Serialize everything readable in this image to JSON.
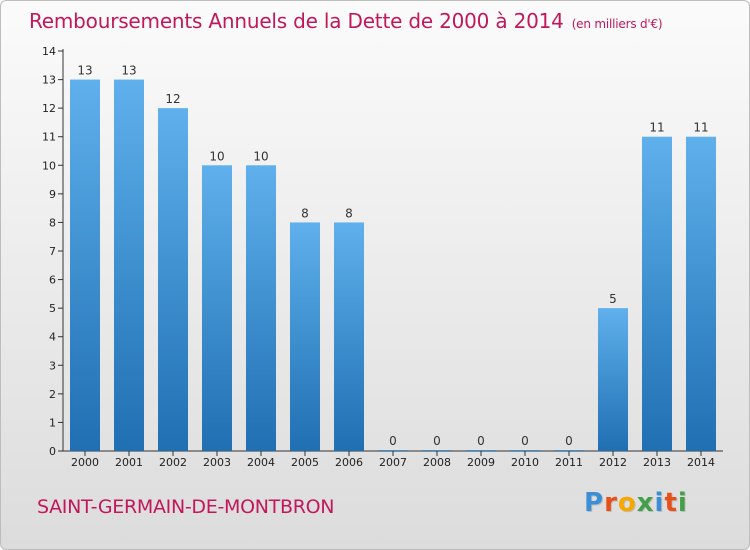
{
  "title": "Remboursements Annuels de la Dette de 2000 à 2014",
  "subtitle": "(en milliers d'€)",
  "commune": "SAINT-GERMAIN-DE-MONTBRON",
  "brand": {
    "letters": [
      "P",
      "r",
      "o",
      "x",
      "i",
      "t",
      "i"
    ],
    "colors": [
      "#3c8fd6",
      "#e8501a",
      "#f4a800",
      "#43a047",
      "#3c8fd6",
      "#e8501a",
      "#43a047"
    ]
  },
  "colors": {
    "bar_top": "#5fb0ec",
    "bar_bottom": "#1f6fb2",
    "title": "#c2185b"
  },
  "chart_data": {
    "type": "bar",
    "categories": [
      "2000",
      "2001",
      "2002",
      "2003",
      "2004",
      "2005",
      "2006",
      "2007",
      "2008",
      "2009",
      "2010",
      "2011",
      "2012",
      "2013",
      "2014"
    ],
    "values": [
      13,
      13,
      12,
      10,
      10,
      8,
      8,
      0,
      0,
      0,
      0,
      0,
      5,
      11,
      11
    ],
    "labels": [
      "13",
      "13",
      "12",
      "10",
      "10",
      "8",
      "8",
      "0",
      "0",
      "0",
      "0",
      "0",
      "5",
      "11",
      "11"
    ],
    "y_ticks": [
      0,
      1,
      2,
      3,
      4,
      5,
      6,
      7,
      8,
      9,
      10,
      11,
      12,
      13,
      14
    ],
    "ylim": [
      0,
      14
    ],
    "grid": false
  }
}
